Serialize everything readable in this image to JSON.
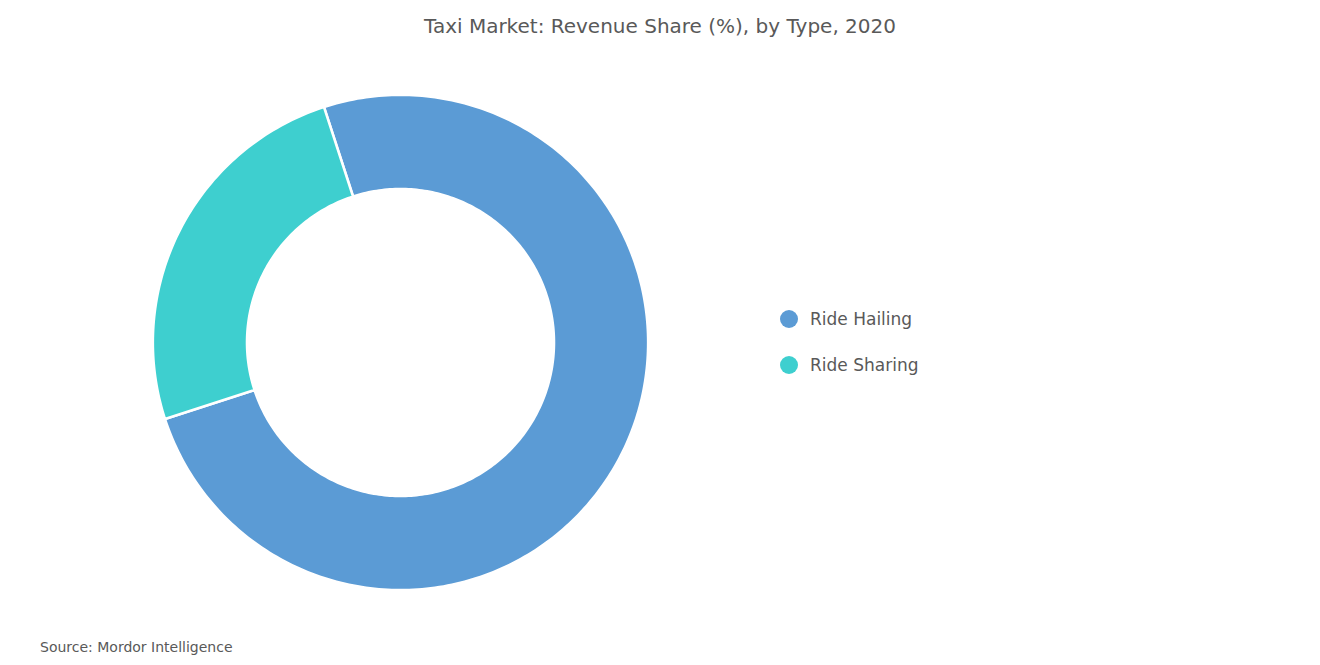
{
  "chart_data": {
    "type": "pie",
    "title": "Taxi Market: Revenue Share (%), by Type, 2020",
    "categories": [
      "Ride Hailing",
      "Ride Sharing"
    ],
    "values": [
      75,
      25
    ],
    "colors": [
      "#5b9bd5",
      "#3ecfcf"
    ],
    "legend": "right",
    "caption": "Source: Mordor Intelligence"
  }
}
